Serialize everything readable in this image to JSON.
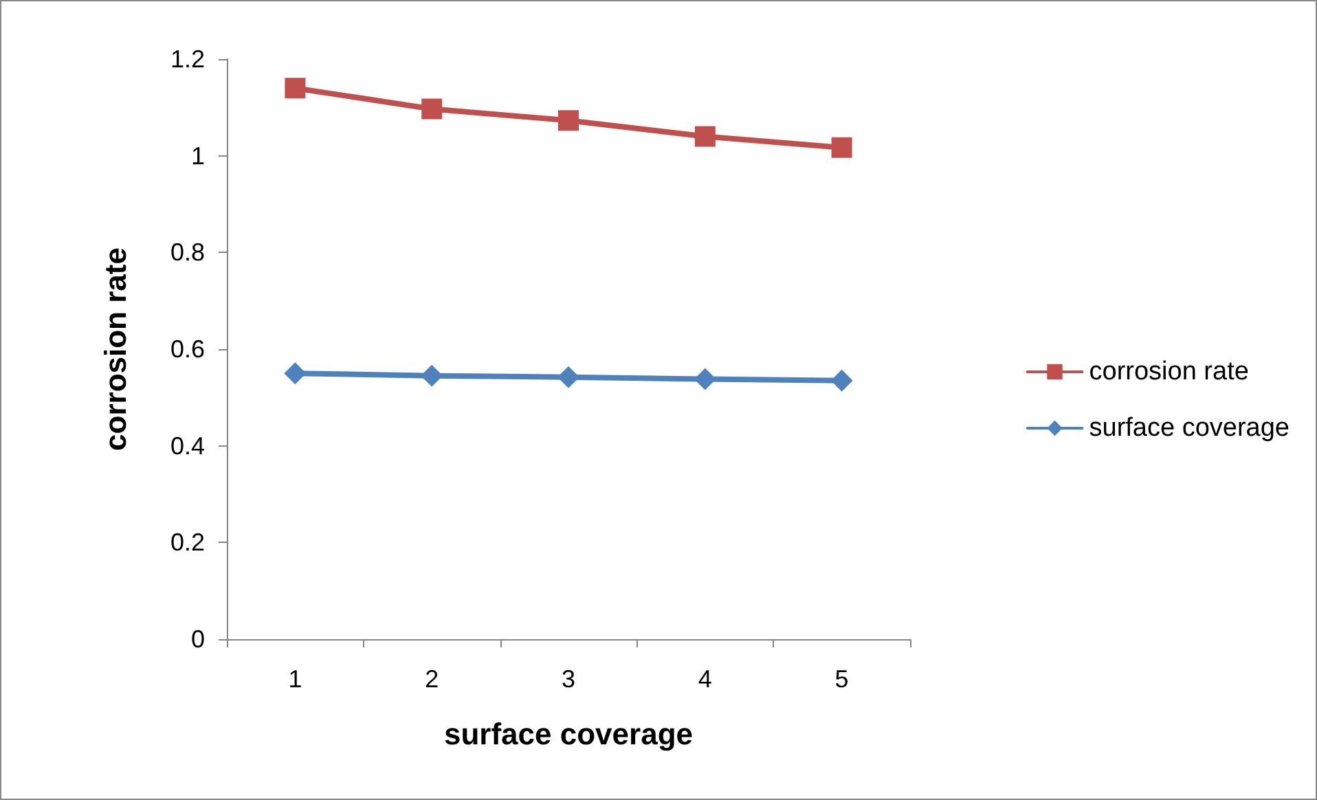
{
  "chart_data": {
    "type": "line",
    "xlabel": "surface coverage",
    "ylabel": "corrosion rate",
    "categories": [
      "1",
      "2",
      "3",
      "4",
      "5"
    ],
    "series": [
      {
        "name": "corrosion rate",
        "color": "#c0504d",
        "marker": "square",
        "values": [
          1.14,
          1.097,
          1.073,
          1.04,
          1.017
        ]
      },
      {
        "name": "surface coverage",
        "color": "#4f81bd",
        "marker": "diamond",
        "values": [
          0.55,
          0.545,
          0.542,
          0.538,
          0.535
        ]
      }
    ],
    "ylim": [
      0,
      1.2
    ],
    "yticks": [
      0,
      0.2,
      0.4,
      0.6,
      0.8,
      1,
      1.2
    ],
    "grid": false,
    "legend": "right",
    "line_style": "solid"
  }
}
